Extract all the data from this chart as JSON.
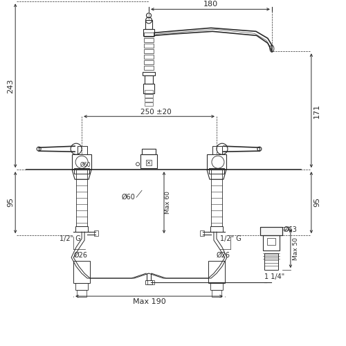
{
  "bg_color": "#ffffff",
  "line_color": "#2a2a2a",
  "dim_color": "#2a2a2a",
  "fig_size": [
    5.0,
    5.0
  ],
  "dpi": 100,
  "annotations": {
    "top_width": "180",
    "center_spread": "250 ±20",
    "left_height": "243",
    "right_top_height": "171",
    "left_bottom": "95",
    "right_bottom": "95",
    "left_label": "1/2\" G",
    "left_dia": "Ø26",
    "right_label": "1/2\" G",
    "right_dia": "Ø26",
    "center_dia": "Ø60",
    "drain_dia": "Ø63",
    "drain_height": "Max 50",
    "drain_label": "1 1/4\"",
    "bottom_width": "Max 190",
    "center_max": "Max 60"
  }
}
